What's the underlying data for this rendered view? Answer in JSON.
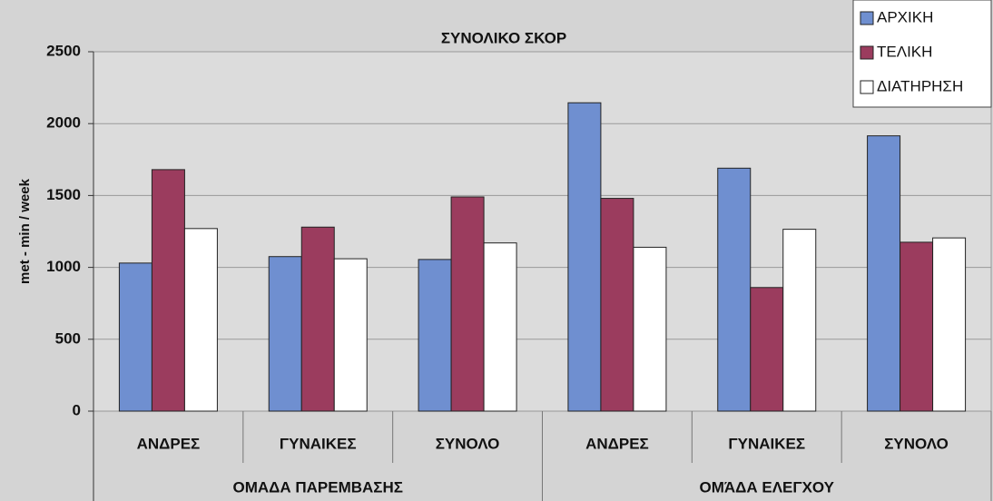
{
  "chart_data": {
    "type": "bar",
    "title": "ΣΥΝΟΛΙΚΟ ΣΚΟΡ",
    "y_label": "met - min / week",
    "categories": [
      "ΑΝΔΡΕΣ",
      "ΓΥΝΑΙΚΕΣ",
      "ΣΥΝΟΛΟ",
      "ΑΝΔΡΕΣ",
      "ΓΥΝΑΙΚΕΣ",
      "ΣΥΝΟΛΟ"
    ],
    "groups": [
      "ΟΜΑΔΑ ΠΑΡΕΜΒΑΣΗΣ",
      "ΟΜΆΔΑ ΕΛΕΓΧΟΥ"
    ],
    "series": [
      {
        "name": "ΑΡΧΙΚΗ",
        "color": "#6f8fd0",
        "values": [
          1030,
          1075,
          1055,
          2145,
          1690,
          1915
        ]
      },
      {
        "name": "ΤΕΛΙΚΗ",
        "color": "#9b3c5e",
        "values": [
          1680,
          1280,
          1490,
          1480,
          860,
          1175
        ]
      },
      {
        "name": "ΔΙΑΤΗΡΗΣΗ",
        "color": "#ffffff",
        "values": [
          1270,
          1060,
          1170,
          1140,
          1265,
          1205
        ]
      }
    ],
    "ylim": [
      0,
      2500
    ],
    "yticks": [
      0,
      500,
      1000,
      1500,
      2000,
      2500
    ],
    "grid": true,
    "legend": "top-right"
  }
}
